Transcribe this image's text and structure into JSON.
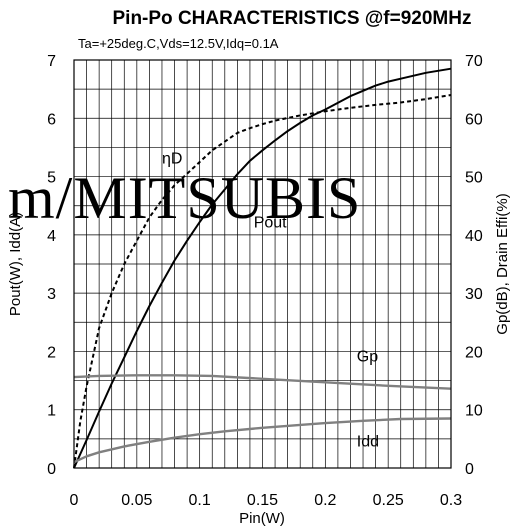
{
  "chart_data": {
    "type": "line",
    "title": "Pin-Po CHARACTERISTICS @f=920MHz",
    "subtitle": "Ta=+25deg.C,Vds=12.5V,Idq=0.1A",
    "xlabel": "Pin(W)",
    "ylabel_left": "Pout(W), Idd(A)",
    "ylabel_right": "Gp(dB),  Drain Effi(%)",
    "xlim": [
      0,
      0.3
    ],
    "ylim_left": [
      0,
      7
    ],
    "ylim_right": [
      0,
      70
    ],
    "x_ticks": [
      "0",
      "0.05",
      "0.1",
      "0.15",
      "0.2",
      "0.25",
      "0.3"
    ],
    "y_ticks_left": [
      "0",
      "1",
      "2",
      "3",
      "4",
      "5",
      "6",
      "7"
    ],
    "y_ticks_right": [
      "0",
      "10",
      "20",
      "30",
      "40",
      "50",
      "60",
      "70"
    ],
    "grid": true,
    "watermark": "m/MITSUBIS",
    "series": [
      {
        "name": "Pout",
        "axis": "left",
        "color": "#000000",
        "style": "solid",
        "x": [
          0,
          0.01,
          0.02,
          0.03,
          0.04,
          0.05,
          0.06,
          0.07,
          0.08,
          0.09,
          0.1,
          0.11,
          0.12,
          0.13,
          0.14,
          0.15,
          0.16,
          0.17,
          0.18,
          0.19,
          0.2,
          0.22,
          0.24,
          0.25,
          0.26,
          0.28,
          0.3
        ],
        "y": [
          0,
          0.48,
          0.97,
          1.45,
          1.9,
          2.35,
          2.78,
          3.18,
          3.56,
          3.9,
          4.22,
          4.52,
          4.78,
          5.04,
          5.27,
          5.45,
          5.62,
          5.78,
          5.92,
          6.05,
          6.15,
          6.38,
          6.56,
          6.63,
          6.68,
          6.78,
          6.85
        ]
      },
      {
        "name": "ηD",
        "axis": "right",
        "color": "#000000",
        "style": "dashed",
        "x": [
          0,
          0.005,
          0.01,
          0.02,
          0.03,
          0.04,
          0.05,
          0.06,
          0.07,
          0.08,
          0.09,
          0.1,
          0.11,
          0.12,
          0.13,
          0.14,
          0.15,
          0.16,
          0.18,
          0.2,
          0.22,
          0.24,
          0.26,
          0.28,
          0.3
        ],
        "y": [
          0,
          8,
          14,
          24,
          30,
          35,
          39,
          43,
          46,
          48.5,
          50.5,
          52.5,
          54.5,
          56,
          57.5,
          58.3,
          59,
          59.6,
          60.5,
          61.2,
          61.8,
          62.3,
          62.7,
          63.3,
          64
        ]
      },
      {
        "name": "Gp",
        "axis": "right",
        "color": "#808080",
        "style": "solid",
        "x": [
          0,
          0.02,
          0.05,
          0.08,
          0.11,
          0.15,
          0.2,
          0.25,
          0.3
        ],
        "y": [
          15.6,
          15.8,
          15.9,
          15.9,
          15.8,
          15.3,
          14.7,
          14.1,
          13.6
        ]
      },
      {
        "name": "Idd",
        "axis": "left",
        "color": "#808080",
        "style": "solid",
        "x": [
          0,
          0.01,
          0.02,
          0.04,
          0.06,
          0.08,
          0.1,
          0.12,
          0.15,
          0.18,
          0.2,
          0.23,
          0.26,
          0.3
        ],
        "y": [
          0.1,
          0.2,
          0.27,
          0.37,
          0.45,
          0.52,
          0.58,
          0.63,
          0.69,
          0.74,
          0.77,
          0.81,
          0.84,
          0.85
        ]
      }
    ],
    "annotations": [
      {
        "text": "ηD",
        "series": "ηD",
        "x": 0.07,
        "y": 52.2,
        "axis": "right"
      },
      {
        "text": "Pout",
        "series": "Pout",
        "x": 0.143,
        "y": 4.13,
        "axis": "left"
      },
      {
        "text": "Gp",
        "series": "Gp",
        "x": 0.225,
        "y": 18.3,
        "axis": "right"
      },
      {
        "text": "Idd",
        "series": "Idd",
        "x": 0.225,
        "y": 0.37,
        "axis": "left"
      }
    ]
  }
}
